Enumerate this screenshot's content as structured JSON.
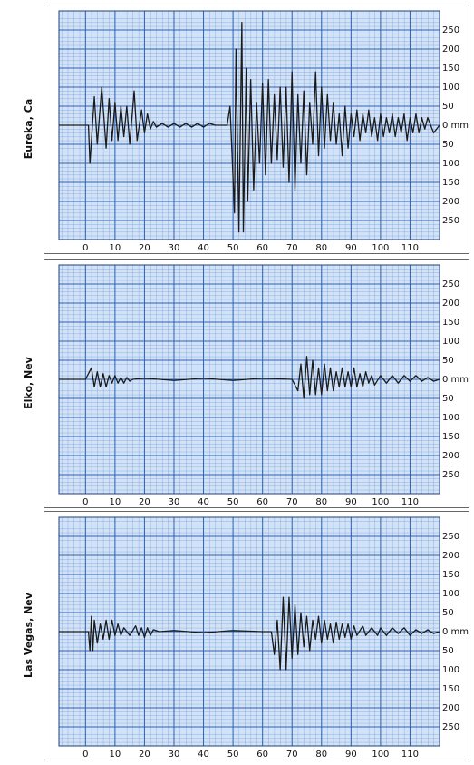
{
  "chart_data": [
    {
      "type": "line",
      "title": "Eureka, Ca",
      "color": "#1a1a1a",
      "grid": true,
      "xlim": [
        -9,
        120
      ],
      "ylim": [
        -300,
        300
      ],
      "xticks": [
        0,
        10,
        20,
        30,
        40,
        50,
        60,
        70,
        80,
        90,
        100,
        110
      ],
      "yticks": [
        250,
        200,
        150,
        100,
        50,
        {
          "value": 0,
          "label": "0 mm"
        },
        {
          "value": -50,
          "label": "50"
        },
        {
          "value": -100,
          "label": "100"
        },
        {
          "value": -150,
          "label": "150"
        },
        {
          "value": -200,
          "label": "200"
        },
        {
          "value": -250,
          "label": "250"
        }
      ],
      "x": [
        -9,
        0,
        1,
        1.5,
        3,
        4,
        5.5,
        7,
        8,
        9,
        10,
        11,
        12,
        13,
        14,
        15,
        16.5,
        17.5,
        19,
        20,
        21,
        22,
        23,
        24,
        26,
        28,
        30,
        32,
        34,
        36,
        38,
        40,
        42,
        44,
        46,
        48,
        49,
        50.5,
        51,
        52,
        53,
        53.5,
        54.5,
        55,
        56,
        57,
        58,
        59,
        60,
        61,
        62,
        63,
        64,
        65,
        66,
        67,
        68,
        69,
        70,
        71,
        72,
        73,
        74,
        75,
        76,
        77,
        78,
        79,
        80,
        81,
        82,
        83,
        84,
        85,
        86,
        87,
        88,
        89,
        90,
        91,
        92,
        93,
        94,
        95,
        96,
        97,
        98,
        99,
        100,
        101,
        102,
        103,
        104,
        105,
        106,
        107,
        108,
        109,
        110,
        111,
        112,
        113,
        114,
        115,
        116,
        118,
        120
      ],
      "values": [
        0,
        0,
        0,
        -100,
        75,
        -50,
        100,
        -60,
        70,
        -40,
        60,
        -40,
        50,
        -30,
        50,
        -50,
        90,
        -40,
        40,
        -20,
        30,
        -10,
        10,
        -5,
        5,
        -5,
        5,
        -5,
        5,
        -5,
        5,
        -5,
        5,
        0,
        0,
        0,
        50,
        -230,
        200,
        -280,
        270,
        -280,
        150,
        -200,
        120,
        -170,
        60,
        -100,
        110,
        -130,
        120,
        -100,
        80,
        -90,
        100,
        -110,
        100,
        -150,
        140,
        -170,
        80,
        -100,
        90,
        -130,
        60,
        -50,
        140,
        -80,
        100,
        -60,
        80,
        -40,
        60,
        -50,
        30,
        -80,
        50,
        -60,
        30,
        -30,
        40,
        -40,
        30,
        -20,
        40,
        -30,
        20,
        -40,
        30,
        -30,
        20,
        -20,
        30,
        -30,
        20,
        -20,
        30,
        -40,
        20,
        -20,
        30,
        -20,
        20,
        -10,
        20,
        -20,
        0
      ]
    },
    {
      "type": "line",
      "title": "Elko, Nev",
      "color": "#1a1a1a",
      "grid": true,
      "xlim": [
        -9,
        120
      ],
      "ylim": [
        -300,
        300
      ],
      "xticks": [
        0,
        10,
        20,
        30,
        40,
        50,
        60,
        70,
        80,
        90,
        100,
        110
      ],
      "yticks": [
        250,
        200,
        150,
        100,
        50,
        {
          "value": 0,
          "label": "0 mm"
        },
        {
          "value": -50,
          "label": "50"
        },
        {
          "value": -100,
          "label": "100"
        },
        {
          "value": -150,
          "label": "150"
        },
        {
          "value": -200,
          "label": "200"
        },
        {
          "value": -250,
          "label": "250"
        }
      ],
      "x": [
        -9,
        0,
        2,
        3,
        4,
        5,
        6,
        7,
        8,
        9,
        10,
        11,
        12,
        13,
        14,
        15,
        16,
        20,
        30,
        40,
        50,
        60,
        70,
        72,
        73,
        74,
        75,
        76,
        77,
        78,
        79,
        80,
        81,
        82,
        83,
        84,
        85,
        86,
        87,
        88,
        89,
        90,
        91,
        92,
        93,
        94,
        95,
        96,
        97,
        98,
        100,
        102,
        104,
        106,
        108,
        110,
        112,
        114,
        116,
        118,
        120
      ],
      "values": [
        0,
        0,
        30,
        -20,
        20,
        -20,
        15,
        -20,
        10,
        -10,
        10,
        -10,
        5,
        -10,
        5,
        -5,
        0,
        3,
        -3,
        3,
        -3,
        3,
        0,
        -30,
        40,
        -50,
        60,
        -40,
        50,
        -40,
        30,
        -40,
        40,
        -30,
        30,
        -30,
        20,
        -20,
        30,
        -20,
        20,
        -20,
        30,
        -20,
        15,
        -20,
        20,
        -10,
        10,
        -15,
        10,
        -10,
        10,
        -10,
        10,
        -5,
        10,
        -5,
        5,
        -5,
        0
      ]
    },
    {
      "type": "line",
      "title": "Las Vegas, Nev",
      "color": "#1a1a1a",
      "grid": true,
      "xlim": [
        -9,
        120
      ],
      "ylim": [
        -300,
        300
      ],
      "xticks": [
        0,
        10,
        20,
        30,
        40,
        50,
        60,
        70,
        80,
        90,
        100,
        110
      ],
      "yticks": [
        250,
        200,
        150,
        100,
        50,
        {
          "value": 0,
          "label": "0 mm"
        },
        {
          "value": -50,
          "label": "50"
        },
        {
          "value": -100,
          "label": "100"
        },
        {
          "value": -150,
          "label": "150"
        },
        {
          "value": -200,
          "label": "200"
        },
        {
          "value": -250,
          "label": "250"
        }
      ],
      "x": [
        -9,
        0,
        1,
        1.5,
        2,
        2.5,
        3,
        4,
        5,
        6,
        7,
        8,
        9,
        10,
        11,
        12,
        13,
        15,
        17,
        18,
        19,
        20,
        21,
        22,
        23,
        25,
        30,
        40,
        50,
        60,
        63,
        64,
        65,
        66,
        67,
        68,
        69,
        70,
        71,
        72,
        73,
        74,
        75,
        76,
        77,
        78,
        79,
        80,
        81,
        82,
        83,
        84,
        85,
        86,
        87,
        88,
        89,
        90,
        91,
        92,
        94,
        95,
        97,
        99,
        100,
        102,
        104,
        106,
        108,
        110,
        112,
        114,
        116,
        118,
        120
      ],
      "values": [
        0,
        0,
        0,
        -50,
        40,
        -50,
        30,
        -30,
        20,
        -20,
        30,
        -20,
        30,
        -10,
        20,
        -10,
        10,
        -10,
        15,
        -10,
        10,
        -15,
        10,
        -10,
        5,
        0,
        3,
        -3,
        3,
        0,
        0,
        -60,
        30,
        -100,
        90,
        -100,
        90,
        -70,
        70,
        -60,
        50,
        -40,
        40,
        -50,
        30,
        -20,
        40,
        -30,
        30,
        -20,
        20,
        -30,
        25,
        -20,
        20,
        -15,
        20,
        -20,
        15,
        -10,
        15,
        -10,
        10,
        -10,
        10,
        -10,
        10,
        -5,
        10,
        -10,
        5,
        -5,
        5,
        -5,
        0
      ]
    }
  ]
}
